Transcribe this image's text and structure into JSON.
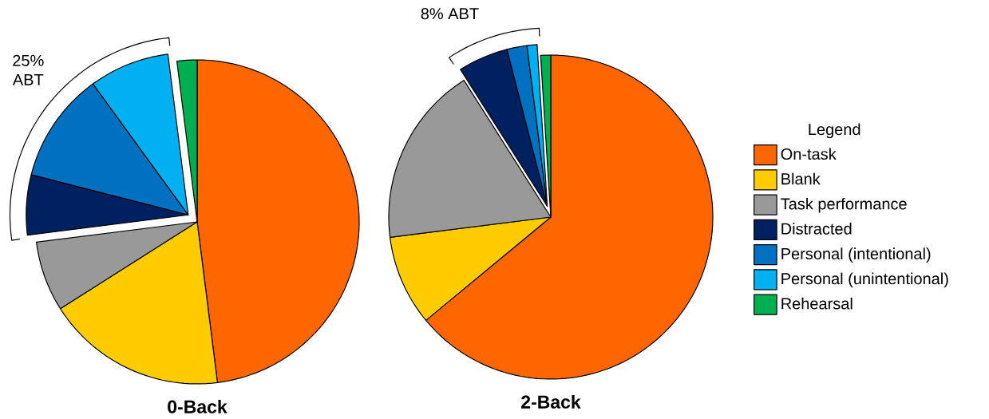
{
  "chart_data": [
    {
      "type": "pie",
      "title": "0-Back",
      "categories": [
        null,
        null,
        null,
        null,
        null,
        null,
        null
      ],
      "values": [
        48,
        18,
        7,
        6,
        11,
        8,
        2
      ],
      "colors": [
        "#ff6600",
        "#ffcc00",
        "#999999",
        "#002060",
        "#0070c0",
        "#00b0f0",
        "#00b050"
      ],
      "annotations": [
        "25% ABT"
      ],
      "legend": false
    },
    {
      "type": "pie",
      "title": "2-Back",
      "categories": [
        "On-task",
        "Blank",
        "Task performance",
        "Distracted",
        "Personal (intentional)",
        "Personal (unintentional)",
        "Rehearsal"
      ],
      "values": [
        64,
        9,
        18,
        5,
        2,
        1,
        1
      ],
      "colors": [
        "#ff6600",
        "#ffcc00",
        "#999999",
        "#002060",
        "#0070c0",
        "#00b0f0",
        "#00b050"
      ],
      "annotations": [
        "8% ABT"
      ],
      "legend": "right",
      "legend_title": "Legend"
    }
  ]
}
